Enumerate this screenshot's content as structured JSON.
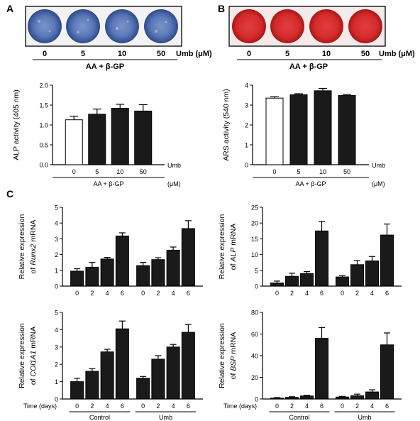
{
  "panel_letters": {
    "a": "A",
    "b": "B",
    "c": "C"
  },
  "treatment_label": "AA + β-GP",
  "umb_label": "Umb (μM)",
  "umb_label_split": [
    "Umb",
    "(μM)"
  ],
  "doses": [
    "0",
    "5",
    "10",
    "50"
  ],
  "time_label": "Time (days)",
  "group_labels": [
    "Control",
    "Umb"
  ],
  "colors": {
    "bar": "#1a1a1a",
    "control_bar": "#ffffff",
    "stain_blue": "#5a78b8",
    "stain_red": "#d42a2a"
  },
  "chart_data": [
    {
      "id": "alp-activity",
      "type": "bar",
      "categories": [
        "0",
        "5",
        "10",
        "50"
      ],
      "values": [
        1.13,
        1.27,
        1.42,
        1.35
      ],
      "errors": [
        0.09,
        0.13,
        0.1,
        0.16
      ],
      "fills": [
        "white",
        "black",
        "black",
        "black"
      ],
      "ylabel": "ALP activity (405 nm)",
      "ylim": [
        0,
        2.0
      ],
      "yticks": [
        "0.0",
        "0.5",
        "1.0",
        "1.5",
        "2.0"
      ],
      "xlabel": "Umb (μM)"
    },
    {
      "id": "ars-activity",
      "type": "bar",
      "categories": [
        "0",
        "5",
        "10",
        "50"
      ],
      "values": [
        3.35,
        3.52,
        3.72,
        3.48
      ],
      "errors": [
        0.07,
        0.05,
        0.12,
        0.05
      ],
      "fills": [
        "white",
        "black",
        "black",
        "black"
      ],
      "ylabel": "ARS activity (540 nm)",
      "ylim": [
        0,
        4
      ],
      "yticks": [
        "0",
        "1",
        "2",
        "3",
        "4"
      ],
      "xlabel": "Umb (μM)"
    },
    {
      "id": "runx2",
      "type": "bar",
      "categories": [
        "0",
        "2",
        "4",
        "6",
        "0",
        "2",
        "4",
        "6"
      ],
      "groups": [
        "Control",
        "Umb"
      ],
      "values": [
        0.95,
        1.2,
        1.72,
        3.18,
        1.3,
        1.68,
        2.28,
        3.65
      ],
      "errors": [
        0.15,
        0.3,
        0.1,
        0.2,
        0.2,
        0.12,
        0.2,
        0.5
      ],
      "ylabel": [
        "Relative expression",
        "of Runx2 mRNA"
      ],
      "ylim": [
        0,
        5
      ],
      "yticks": [
        "0",
        "1",
        "2",
        "3",
        "4",
        "5"
      ]
    },
    {
      "id": "alp-mrna",
      "type": "bar",
      "categories": [
        "0",
        "2",
        "4",
        "6",
        "0",
        "2",
        "4",
        "6"
      ],
      "groups": [
        "Control",
        "Umb"
      ],
      "values": [
        1.0,
        3.1,
        4.0,
        17.5,
        2.9,
        6.8,
        8.0,
        16.2
      ],
      "errors": [
        0.6,
        1.0,
        0.6,
        3.0,
        0.4,
        1.3,
        1.4,
        3.5
      ],
      "ylabel": [
        "Relative expression",
        "of ALP mRNA"
      ],
      "ylim": [
        0,
        25
      ],
      "yticks": [
        "0",
        "5",
        "10",
        "15",
        "20",
        "25"
      ]
    },
    {
      "id": "col1a1",
      "type": "bar",
      "categories": [
        "0",
        "2",
        "4",
        "6",
        "0",
        "2",
        "4",
        "6"
      ],
      "groups": [
        "Control",
        "Umb"
      ],
      "values": [
        1.0,
        1.6,
        2.72,
        4.05,
        1.2,
        2.3,
        3.0,
        3.85
      ],
      "errors": [
        0.2,
        0.15,
        0.15,
        0.45,
        0.1,
        0.2,
        0.15,
        0.45
      ],
      "ylabel": [
        "Relative expression",
        "of COl1A1 mRNA"
      ],
      "ylim": [
        0,
        5
      ],
      "yticks": [
        "0",
        "1",
        "2",
        "3",
        "4",
        "5"
      ],
      "xlabel": "Time (days)"
    },
    {
      "id": "bsp",
      "type": "bar",
      "categories": [
        "0",
        "2",
        "4",
        "6",
        "0",
        "2",
        "4",
        "6"
      ],
      "groups": [
        "Control",
        "Umb"
      ],
      "values": [
        0.8,
        1.5,
        2.8,
        56.0,
        1.8,
        3.0,
        6.5,
        50.0
      ],
      "errors": [
        0.5,
        0.6,
        0.6,
        10.0,
        0.6,
        1.5,
        2.0,
        11.0
      ],
      "ylabel": [
        "Relative expression",
        "of BSP mRNA"
      ],
      "ylim": [
        0,
        80
      ],
      "yticks": [
        "0",
        "20",
        "40",
        "60",
        "80"
      ],
      "xlabel": "Time (days)"
    }
  ]
}
